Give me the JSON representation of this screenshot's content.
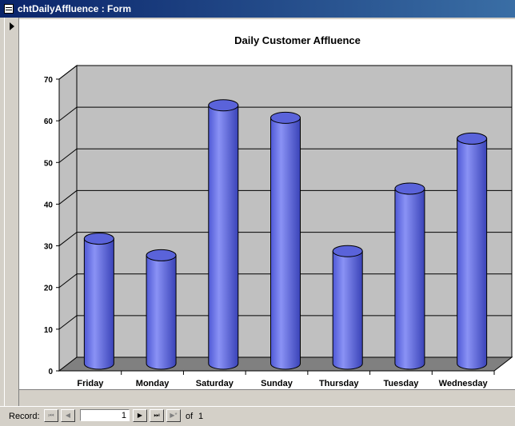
{
  "window": {
    "title": "chtDailyAffluence : Form"
  },
  "navigation": {
    "record_label": "Record:",
    "current_record": "1",
    "of_label": "of",
    "total_records": "1",
    "buttons": {
      "first": "⏮",
      "prev": "◀",
      "next": "▶",
      "last": "⏭",
      "new": "▶*"
    }
  },
  "chart_data": {
    "type": "bar",
    "title": "Daily Customer Affluence",
    "categories": [
      "Friday",
      "Monday",
      "Saturday",
      "Sunday",
      "Thursday",
      "Tuesday",
      "Wednesday"
    ],
    "series": [
      {
        "values": [
          30,
          26,
          62,
          59,
          27,
          42,
          54
        ]
      }
    ],
    "ylim": [
      0,
      70
    ],
    "yticks": [
      "0",
      "10",
      "20",
      "30",
      "40",
      "50",
      "60",
      "70"
    ],
    "grid": true,
    "legend": "none",
    "style": "3d-cylinder",
    "bar_color": "#6670e6",
    "wall_color": "#c0c0c0",
    "floor_color": "#808080"
  }
}
